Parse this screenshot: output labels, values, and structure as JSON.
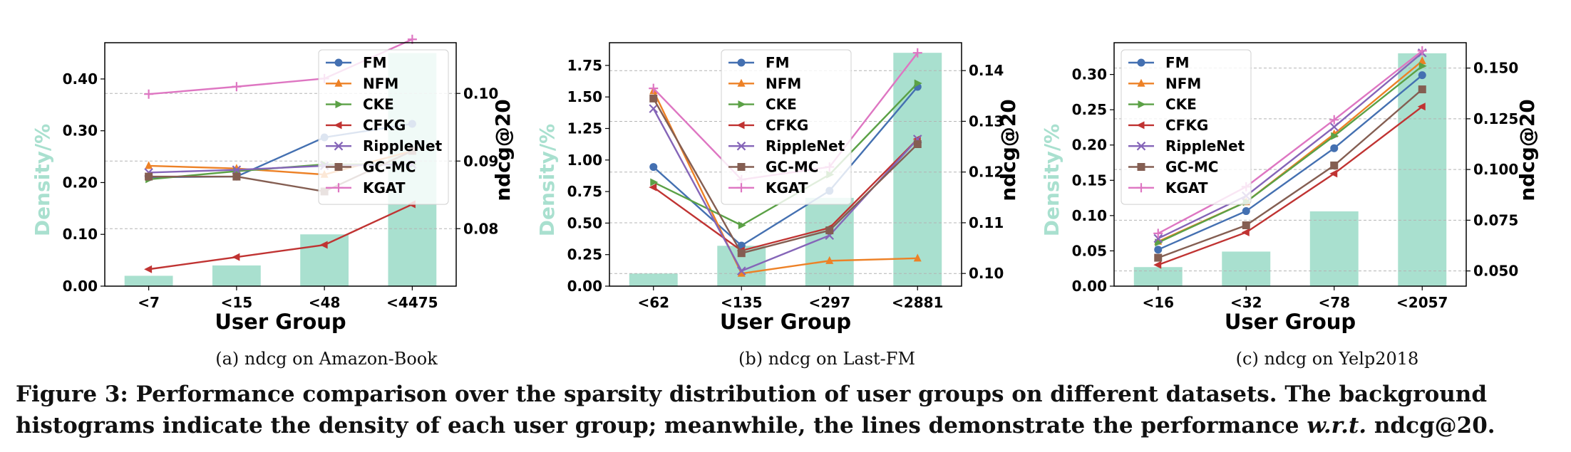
{
  "chart_data": [
    {
      "type": "bar+line",
      "subcaption": "(a)  ndcg on Amazon-Book",
      "categories": [
        "<7",
        "<15",
        "<48",
        "<4475"
      ],
      "xlabel": "User Group",
      "ylabel_left": "Density/%",
      "ylabel_right": "ndcg@20",
      "ylim_left": [
        0,
        0.47
      ],
      "ylim_right": [
        0.0715,
        0.1075
      ],
      "yticks_left": [
        "0.00",
        "0.10",
        "0.20",
        "0.30",
        "0.40"
      ],
      "yticks_right": [
        "0.08",
        "0.09",
        "0.10"
      ],
      "density": [
        0.02,
        0.04,
        0.1,
        0.45
      ],
      "series": [
        {
          "name": "FM",
          "values": [
            0.0876,
            0.0877,
            0.0935,
            0.0955
          ]
        },
        {
          "name": "NFM",
          "values": [
            0.0893,
            0.0889,
            0.088,
            0.0915
          ]
        },
        {
          "name": "CKE",
          "values": [
            0.0873,
            0.0885,
            0.0895,
            0.0895
          ]
        },
        {
          "name": "CFKG",
          "values": [
            0.074,
            0.0758,
            0.0776,
            0.0836
          ]
        },
        {
          "name": "RippleNet",
          "values": [
            0.0883,
            0.0887,
            0.0893,
            0.0895
          ]
        },
        {
          "name": "GC-MC",
          "values": [
            0.0877,
            0.0877,
            0.0855,
            0.0915
          ]
        },
        {
          "name": "KGAT",
          "values": [
            0.0999,
            0.101,
            0.1022,
            0.108
          ]
        }
      ]
    },
    {
      "type": "bar+line",
      "subcaption": "(b)  ndcg on Last-FM",
      "categories": [
        "<62",
        "<135",
        "<297",
        "<2881"
      ],
      "xlabel": "User Group",
      "ylabel_left": "Density/%",
      "ylabel_right": "ndcg@20",
      "ylim_left": [
        0,
        1.93
      ],
      "ylim_right": [
        0.0975,
        0.1455
      ],
      "yticks_left": [
        "0.00",
        "0.25",
        "0.50",
        "0.75",
        "1.00",
        "1.25",
        "1.50",
        "1.75"
      ],
      "yticks_right": [
        "0.10",
        "0.11",
        "0.12",
        "0.13",
        "0.14"
      ],
      "density": [
        0.1,
        0.32,
        0.7,
        1.85
      ],
      "series": [
        {
          "name": "FM",
          "values": [
            0.121,
            0.1055,
            0.1163,
            0.1368
          ]
        },
        {
          "name": "NFM",
          "values": [
            0.136,
            0.1,
            0.1025,
            0.103
          ]
        },
        {
          "name": "CKE",
          "values": [
            0.118,
            0.1095,
            0.1195,
            0.1375
          ]
        },
        {
          "name": "CFKG",
          "values": [
            0.117,
            0.1045,
            0.109,
            0.1265
          ]
        },
        {
          "name": "RippleNet",
          "values": [
            0.1325,
            0.1005,
            0.1075,
            0.1265
          ]
        },
        {
          "name": "GC-MC",
          "values": [
            0.1345,
            0.104,
            0.1085,
            0.1255
          ]
        },
        {
          "name": "KGAT",
          "values": [
            0.1365,
            0.1185,
            0.121,
            0.1435
          ]
        }
      ]
    },
    {
      "type": "bar+line",
      "subcaption": "(c)  ndcg on Yelp2018",
      "categories": [
        "<16",
        "<32",
        "<78",
        "<2057"
      ],
      "xlabel": "User Group",
      "ylabel_left": "Density/%",
      "ylabel_right": "ndcg@20",
      "ylim_left": [
        0,
        0.345
      ],
      "ylim_right": [
        0.0425,
        0.1625
      ],
      "yticks_left": [
        "0.00",
        "0.05",
        "0.10",
        "0.15",
        "0.20",
        "0.25",
        "0.30"
      ],
      "yticks_right": [
        "0.050",
        "0.075",
        "0.100",
        "0.125",
        "0.150"
      ],
      "density": [
        0.027,
        0.049,
        0.106,
        0.33
      ],
      "series": [
        {
          "name": "FM",
          "values": [
            0.0605,
            0.0795,
            0.1105,
            0.1465
          ]
        },
        {
          "name": "NFM",
          "values": [
            0.0645,
            0.084,
            0.1175,
            0.1535
          ]
        },
        {
          "name": "CKE",
          "values": [
            0.064,
            0.084,
            0.1165,
            0.151
          ]
        },
        {
          "name": "CFKG",
          "values": [
            0.053,
            0.069,
            0.098,
            0.131
          ]
        },
        {
          "name": "RippleNet",
          "values": [
            0.066,
            0.087,
            0.121,
            0.1575
          ]
        },
        {
          "name": "GC-MC",
          "values": [
            0.0565,
            0.0725,
            0.102,
            0.1395
          ]
        },
        {
          "name": "KGAT",
          "values": [
            0.0685,
            0.0915,
            0.1245,
            0.1585
          ]
        }
      ]
    }
  ],
  "series_colors": {
    "FM": "#4470b1",
    "NFM": "#ed8126",
    "CKE": "#5ba146",
    "CFKG": "#c03332",
    "RippleNet": "#8565b8",
    "GC-MC": "#845e52",
    "KGAT": "#de76c2"
  },
  "series_markers": {
    "FM": "circle",
    "NFM": "triangle-up",
    "CKE": "triangle-right",
    "CFKG": "triangle-left",
    "RippleNet": "x",
    "GC-MC": "square",
    "KGAT": "plus"
  },
  "bar_color": "#a9e0cf",
  "density_label_color": "#a9e0cf",
  "caption": {
    "part1": "Figure 3: Performance comparison over the sparsity distribution of user groups on different datasets. The background",
    "part2a": "histograms indicate the density of each user group; meanwhile, the lines demonstrate the performance ",
    "part2b": "w.r.t.",
    "part2c": " ndcg@20."
  }
}
